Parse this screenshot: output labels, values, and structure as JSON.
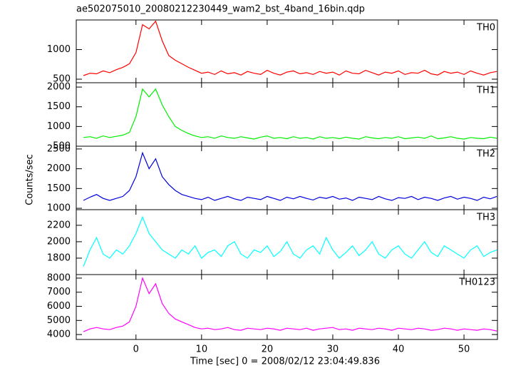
{
  "chart_data": {
    "type": "line",
    "title": "ae502075010_20080212230449_wam2_bst_4band_16bin.qdp",
    "xlabel": "Time [sec] 0 = 2008/02/12 23:04:49.836",
    "ylabel": "Counts/sec",
    "xlim": [
      -9.1,
      55.1
    ],
    "xticks": [
      0,
      10,
      20,
      30,
      40,
      50
    ],
    "x": [
      -8,
      -7,
      -6,
      -5,
      -4,
      -3,
      -2,
      -1,
      0,
      1,
      2,
      3,
      4,
      5,
      6,
      7,
      8,
      9,
      10,
      11,
      12,
      13,
      14,
      15,
      16,
      17,
      18,
      19,
      20,
      21,
      22,
      23,
      24,
      25,
      26,
      27,
      28,
      29,
      30,
      31,
      32,
      33,
      34,
      35,
      36,
      37,
      38,
      39,
      40,
      41,
      42,
      43,
      44,
      45,
      46,
      47,
      48,
      49,
      50,
      51,
      52,
      53,
      54,
      55
    ],
    "series": [
      {
        "name": "TH0",
        "color": "#ff0000",
        "ylim": [
          440,
          1500
        ],
        "yticks": [
          500,
          1000
        ],
        "values": [
          560,
          600,
          590,
          640,
          610,
          660,
          700,
          760,
          950,
          1420,
          1350,
          1480,
          1150,
          900,
          820,
          760,
          700,
          650,
          600,
          620,
          580,
          640,
          590,
          610,
          570,
          630,
          600,
          580,
          650,
          600,
          570,
          620,
          640,
          590,
          610,
          580,
          630,
          600,
          620,
          570,
          640,
          600,
          590,
          650,
          610,
          570,
          620,
          600,
          640,
          580,
          610,
          600,
          650,
          590,
          570,
          630,
          600,
          620,
          580,
          640,
          600,
          570,
          610,
          630
        ]
      },
      {
        "name": "TH1",
        "color": "#00ee00",
        "ylim": [
          500,
          2110
        ],
        "yticks": [
          500,
          1000,
          1500,
          2000
        ],
        "values": [
          720,
          740,
          700,
          760,
          720,
          750,
          780,
          850,
          1250,
          1950,
          1750,
          1950,
          1550,
          1250,
          1000,
          900,
          820,
          760,
          720,
          740,
          700,
          760,
          720,
          700,
          740,
          710,
          680,
          730,
          760,
          700,
          720,
          690,
          740,
          700,
          720,
          680,
          740,
          700,
          720,
          690,
          730,
          700,
          680,
          740,
          710,
          690,
          720,
          700,
          740,
          690,
          710,
          730,
          700,
          760,
          690,
          710,
          740,
          700,
          680,
          720,
          700,
          690,
          730,
          700
        ]
      },
      {
        "name": "TH2",
        "color": "#0000dd",
        "ylim": [
          965,
          2570
        ],
        "yticks": [
          1000,
          1500,
          2000,
          2500
        ],
        "values": [
          1200,
          1280,
          1350,
          1250,
          1200,
          1250,
          1300,
          1450,
          1800,
          2400,
          2000,
          2250,
          1800,
          1600,
          1450,
          1350,
          1300,
          1250,
          1220,
          1280,
          1200,
          1250,
          1300,
          1240,
          1200,
          1280,
          1250,
          1220,
          1300,
          1250,
          1200,
          1280,
          1240,
          1300,
          1250,
          1210,
          1280,
          1250,
          1300,
          1230,
          1260,
          1200,
          1280,
          1250,
          1220,
          1300,
          1240,
          1200,
          1270,
          1250,
          1300,
          1220,
          1280,
          1250,
          1200,
          1260,
          1300,
          1230,
          1280,
          1250,
          1200,
          1280,
          1240,
          1300
        ]
      },
      {
        "name": "TH3",
        "color": "#00ffff",
        "ylim": [
          1600,
          2390
        ],
        "yticks": [
          1800,
          2000,
          2200
        ],
        "values": [
          1700,
          1900,
          2050,
          1850,
          1800,
          1900,
          1850,
          1950,
          2100,
          2300,
          2100,
          2000,
          1900,
          1850,
          1800,
          1900,
          1850,
          1950,
          1800,
          1870,
          1900,
          1820,
          1950,
          2000,
          1850,
          1800,
          1900,
          1870,
          1950,
          1820,
          1880,
          2000,
          1850,
          1800,
          1900,
          1950,
          1850,
          2050,
          1900,
          1800,
          1870,
          1950,
          1830,
          1900,
          2000,
          1850,
          1800,
          1900,
          1950,
          1850,
          1800,
          1900,
          2000,
          1870,
          1820,
          1950,
          1900,
          1850,
          1800,
          1900,
          1950,
          1820,
          1870,
          1900
        ]
      },
      {
        "name": "TH0123",
        "color": "#ff00ff",
        "ylim": [
          3650,
          8250
        ],
        "yticks": [
          4000,
          5000,
          6000,
          7000,
          8000
        ],
        "values": [
          4200,
          4400,
          4500,
          4400,
          4350,
          4500,
          4600,
          4900,
          6000,
          8000,
          6900,
          7600,
          6200,
          5500,
          5100,
          4900,
          4700,
          4500,
          4400,
          4450,
          4350,
          4400,
          4500,
          4350,
          4300,
          4450,
          4400,
          4350,
          4450,
          4400,
          4300,
          4450,
          4400,
          4350,
          4450,
          4300,
          4400,
          4450,
          4500,
          4350,
          4400,
          4300,
          4450,
          4400,
          4350,
          4450,
          4400,
          4300,
          4450,
          4400,
          4350,
          4450,
          4400,
          4300,
          4350,
          4450,
          4400,
          4300,
          4400,
          4350,
          4300,
          4400,
          4350,
          4250
        ]
      }
    ]
  }
}
